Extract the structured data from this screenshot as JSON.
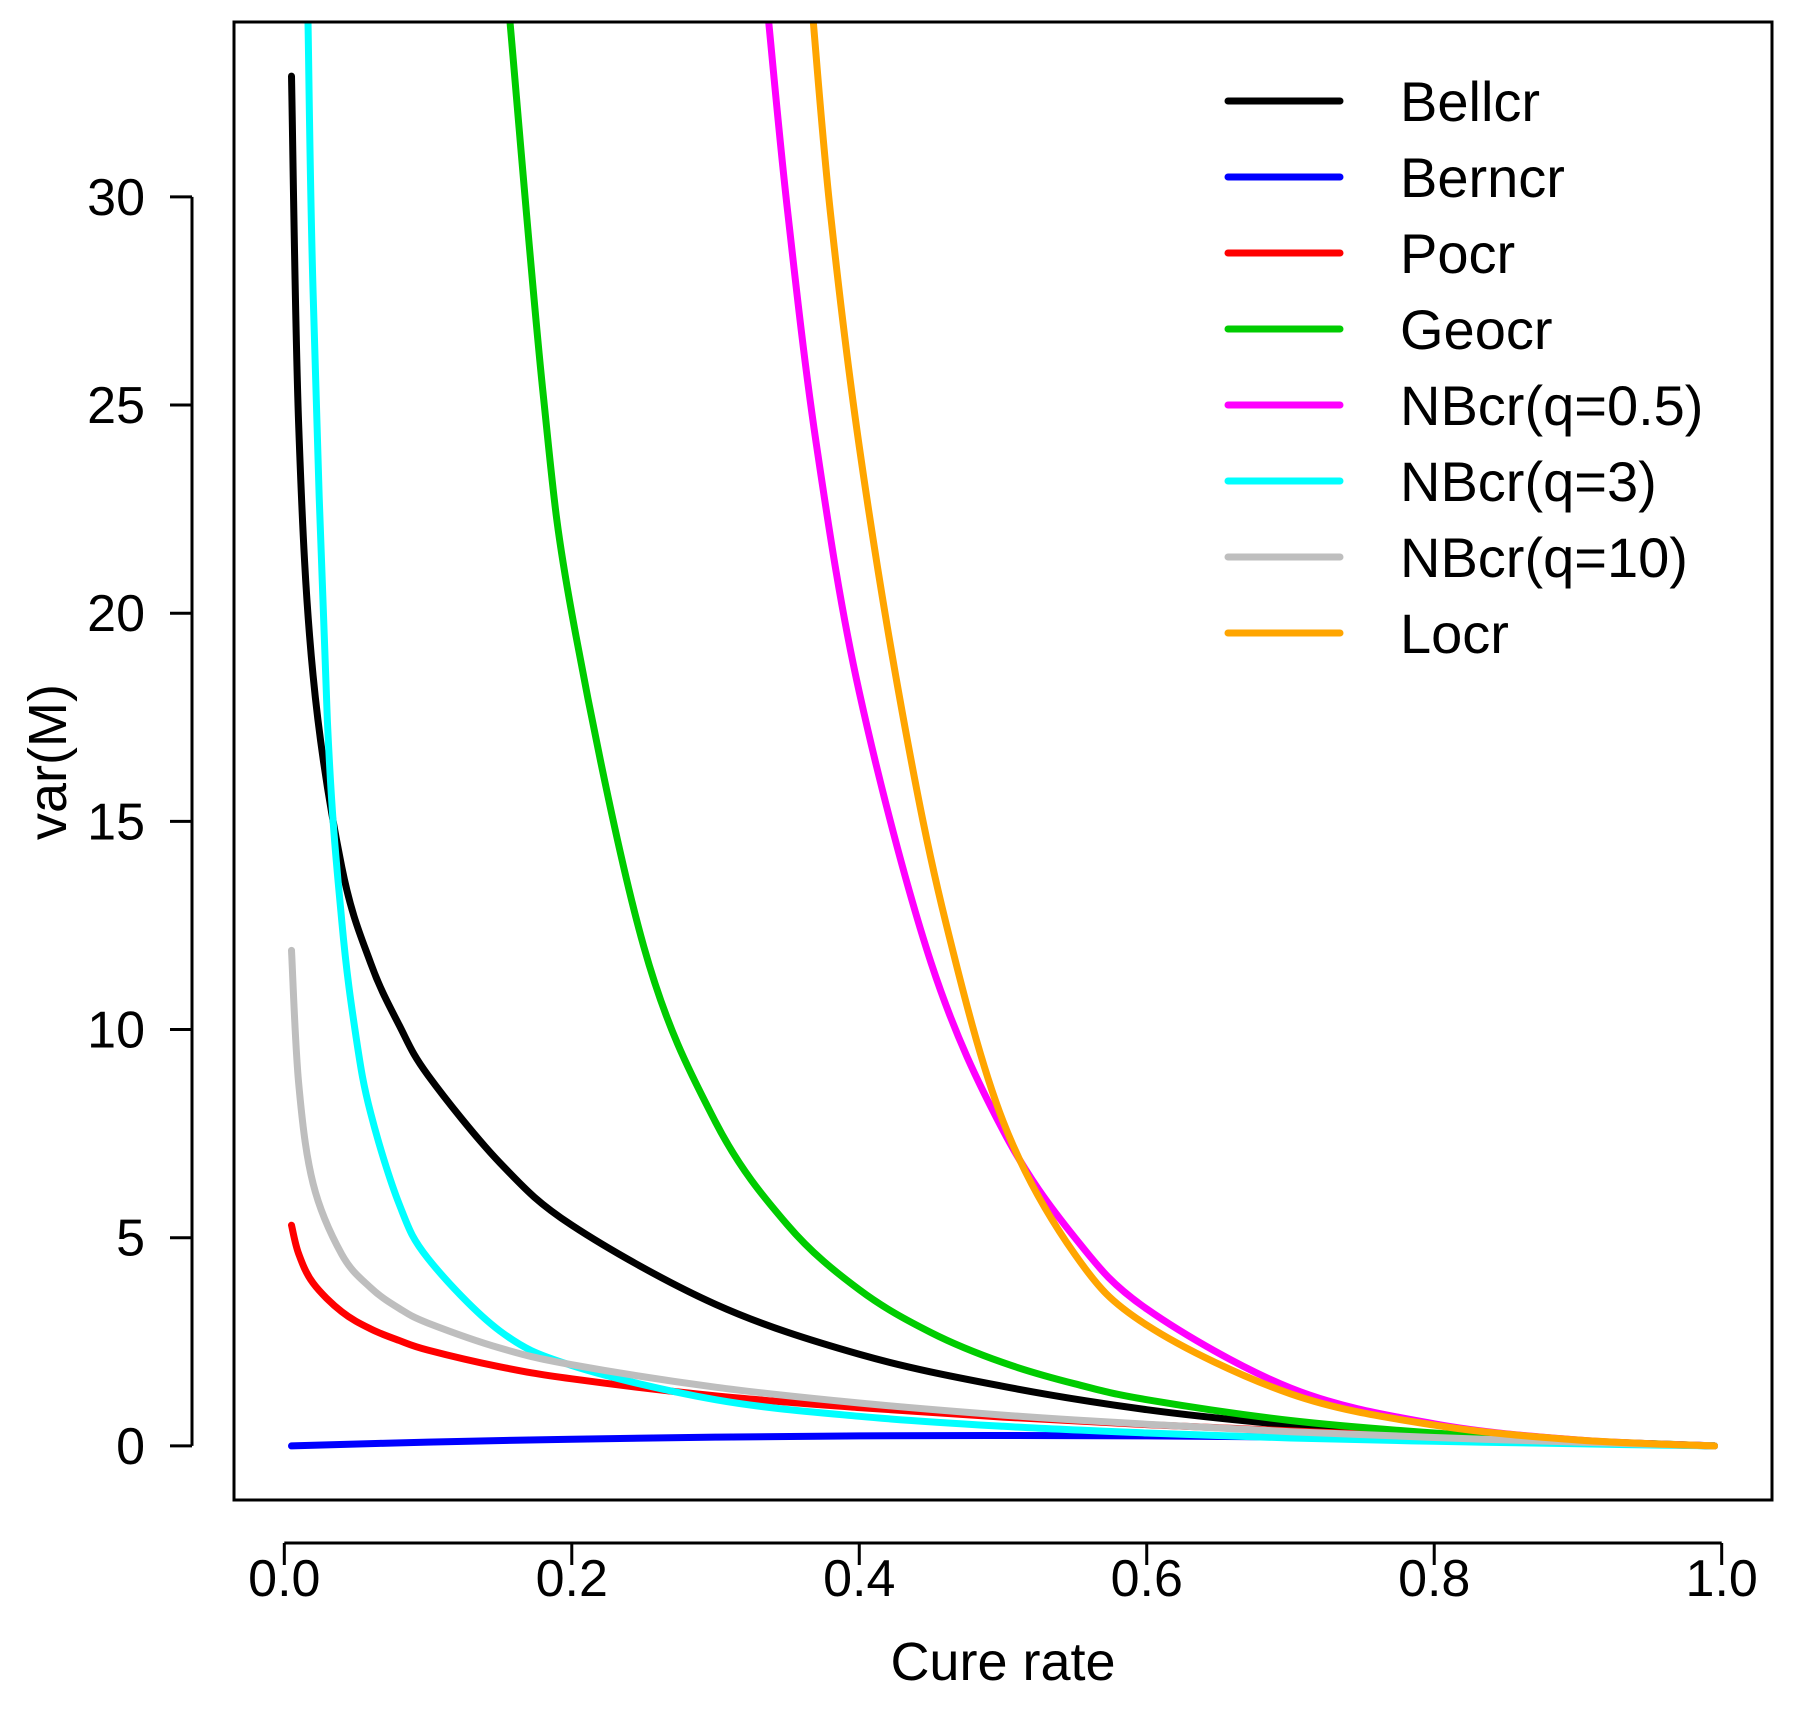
{
  "chart_data": {
    "type": "line",
    "title": "",
    "xlabel": "Cure rate",
    "ylabel": "var(M)",
    "xlim": [
      -0.035,
      1.035
    ],
    "ylim": [
      -1.3,
      34.2
    ],
    "xticks": [
      0.0,
      0.2,
      0.4,
      0.6,
      0.8,
      1.0
    ],
    "xtick_labels": [
      "0.0",
      "0.2",
      "0.4",
      "0.6",
      "0.8",
      "1.0"
    ],
    "yticks": [
      0,
      5,
      10,
      15,
      20,
      25,
      30
    ],
    "ytick_labels": [
      "0",
      "5",
      "10",
      "15",
      "20",
      "25",
      "30"
    ],
    "legend_position": "top-right",
    "series": [
      {
        "name": "Bellcr",
        "color": "#000000",
        "x": [
          0.005,
          0.01,
          0.02,
          0.04,
          0.06,
          0.08,
          0.1,
          0.15,
          0.2,
          0.3,
          0.4,
          0.5,
          0.6,
          0.7,
          0.8,
          0.9,
          0.995
        ],
        "y": [
          32.9,
          24.5,
          18.5,
          13.9,
          11.6,
          10.1,
          8.9,
          6.8,
          5.3,
          3.4,
          2.2,
          1.43,
          0.87,
          0.5,
          0.25,
          0.09,
          0.0
        ]
      },
      {
        "name": "Berncr",
        "color": "#0000ff",
        "x": [
          0.005,
          0.1,
          0.2,
          0.3,
          0.4,
          0.5,
          0.6,
          0.7,
          0.8,
          0.9,
          0.995
        ],
        "y": [
          0.0,
          0.09,
          0.16,
          0.21,
          0.24,
          0.25,
          0.24,
          0.21,
          0.16,
          0.09,
          0.0
        ]
      },
      {
        "name": "Pocr",
        "color": "#ff0000",
        "x": [
          0.005,
          0.01,
          0.02,
          0.04,
          0.06,
          0.08,
          0.1,
          0.15,
          0.2,
          0.3,
          0.4,
          0.5,
          0.6,
          0.7,
          0.8,
          0.9,
          0.995
        ],
        "y": [
          5.3,
          4.61,
          3.91,
          3.22,
          2.81,
          2.53,
          2.3,
          1.9,
          1.61,
          1.2,
          0.92,
          0.69,
          0.51,
          0.36,
          0.22,
          0.11,
          0.0
        ]
      },
      {
        "name": "Geocr",
        "color": "#00cc00",
        "x": [
          0.157,
          0.18,
          0.2,
          0.25,
          0.3,
          0.35,
          0.4,
          0.45,
          0.5,
          0.55,
          0.6,
          0.7,
          0.8,
          0.9,
          0.995
        ],
        "y": [
          34.2,
          25.3,
          20.0,
          12.0,
          7.78,
          5.31,
          3.75,
          2.72,
          2.0,
          1.49,
          1.11,
          0.61,
          0.31,
          0.12,
          0.0
        ]
      },
      {
        "name": "NBcr(q=0.5)",
        "color": "#ff00ff",
        "x": [
          0.337,
          0.35,
          0.37,
          0.4,
          0.45,
          0.5,
          0.55,
          0.6,
          0.7,
          0.8,
          0.9,
          0.995
        ],
        "y": [
          34.2,
          29.7,
          24.1,
          18.1,
          11.6,
          7.58,
          5.0,
          3.29,
          1.39,
          0.53,
          0.14,
          0.0
        ]
      },
      {
        "name": "NBcr(q=3)",
        "color": "#00ffff",
        "x": [
          0.0165,
          0.02,
          0.03,
          0.04,
          0.05,
          0.06,
          0.08,
          0.1,
          0.15,
          0.2,
          0.3,
          0.4,
          0.5,
          0.6,
          0.7,
          0.8,
          0.9,
          0.995
        ],
        "y": [
          34.2,
          27.7,
          17.4,
          12.6,
          9.8,
          8.0,
          5.8,
          4.5,
          2.76,
          1.93,
          1.11,
          0.71,
          0.47,
          0.31,
          0.19,
          0.11,
          0.05,
          0.0
        ]
      },
      {
        "name": "NBcr(q=10)",
        "color": "#bebebe",
        "x": [
          0.005,
          0.01,
          0.02,
          0.04,
          0.06,
          0.08,
          0.1,
          0.15,
          0.2,
          0.3,
          0.4,
          0.5,
          0.6,
          0.7,
          0.8,
          0.9,
          0.995
        ],
        "y": [
          11.9,
          8.7,
          6.3,
          4.6,
          3.8,
          3.3,
          2.95,
          2.35,
          1.95,
          1.41,
          1.03,
          0.74,
          0.52,
          0.34,
          0.2,
          0.09,
          0.0
        ]
      },
      {
        "name": "Locr",
        "color": "#ffa500",
        "x": [
          0.368,
          0.38,
          0.4,
          0.43,
          0.46,
          0.5,
          0.55,
          0.6,
          0.7,
          0.8,
          0.9,
          0.995
        ],
        "y": [
          34.2,
          29.6,
          24.0,
          17.6,
          12.6,
          7.8,
          4.6,
          2.9,
          1.25,
          0.5,
          0.14,
          0.0
        ]
      }
    ]
  }
}
